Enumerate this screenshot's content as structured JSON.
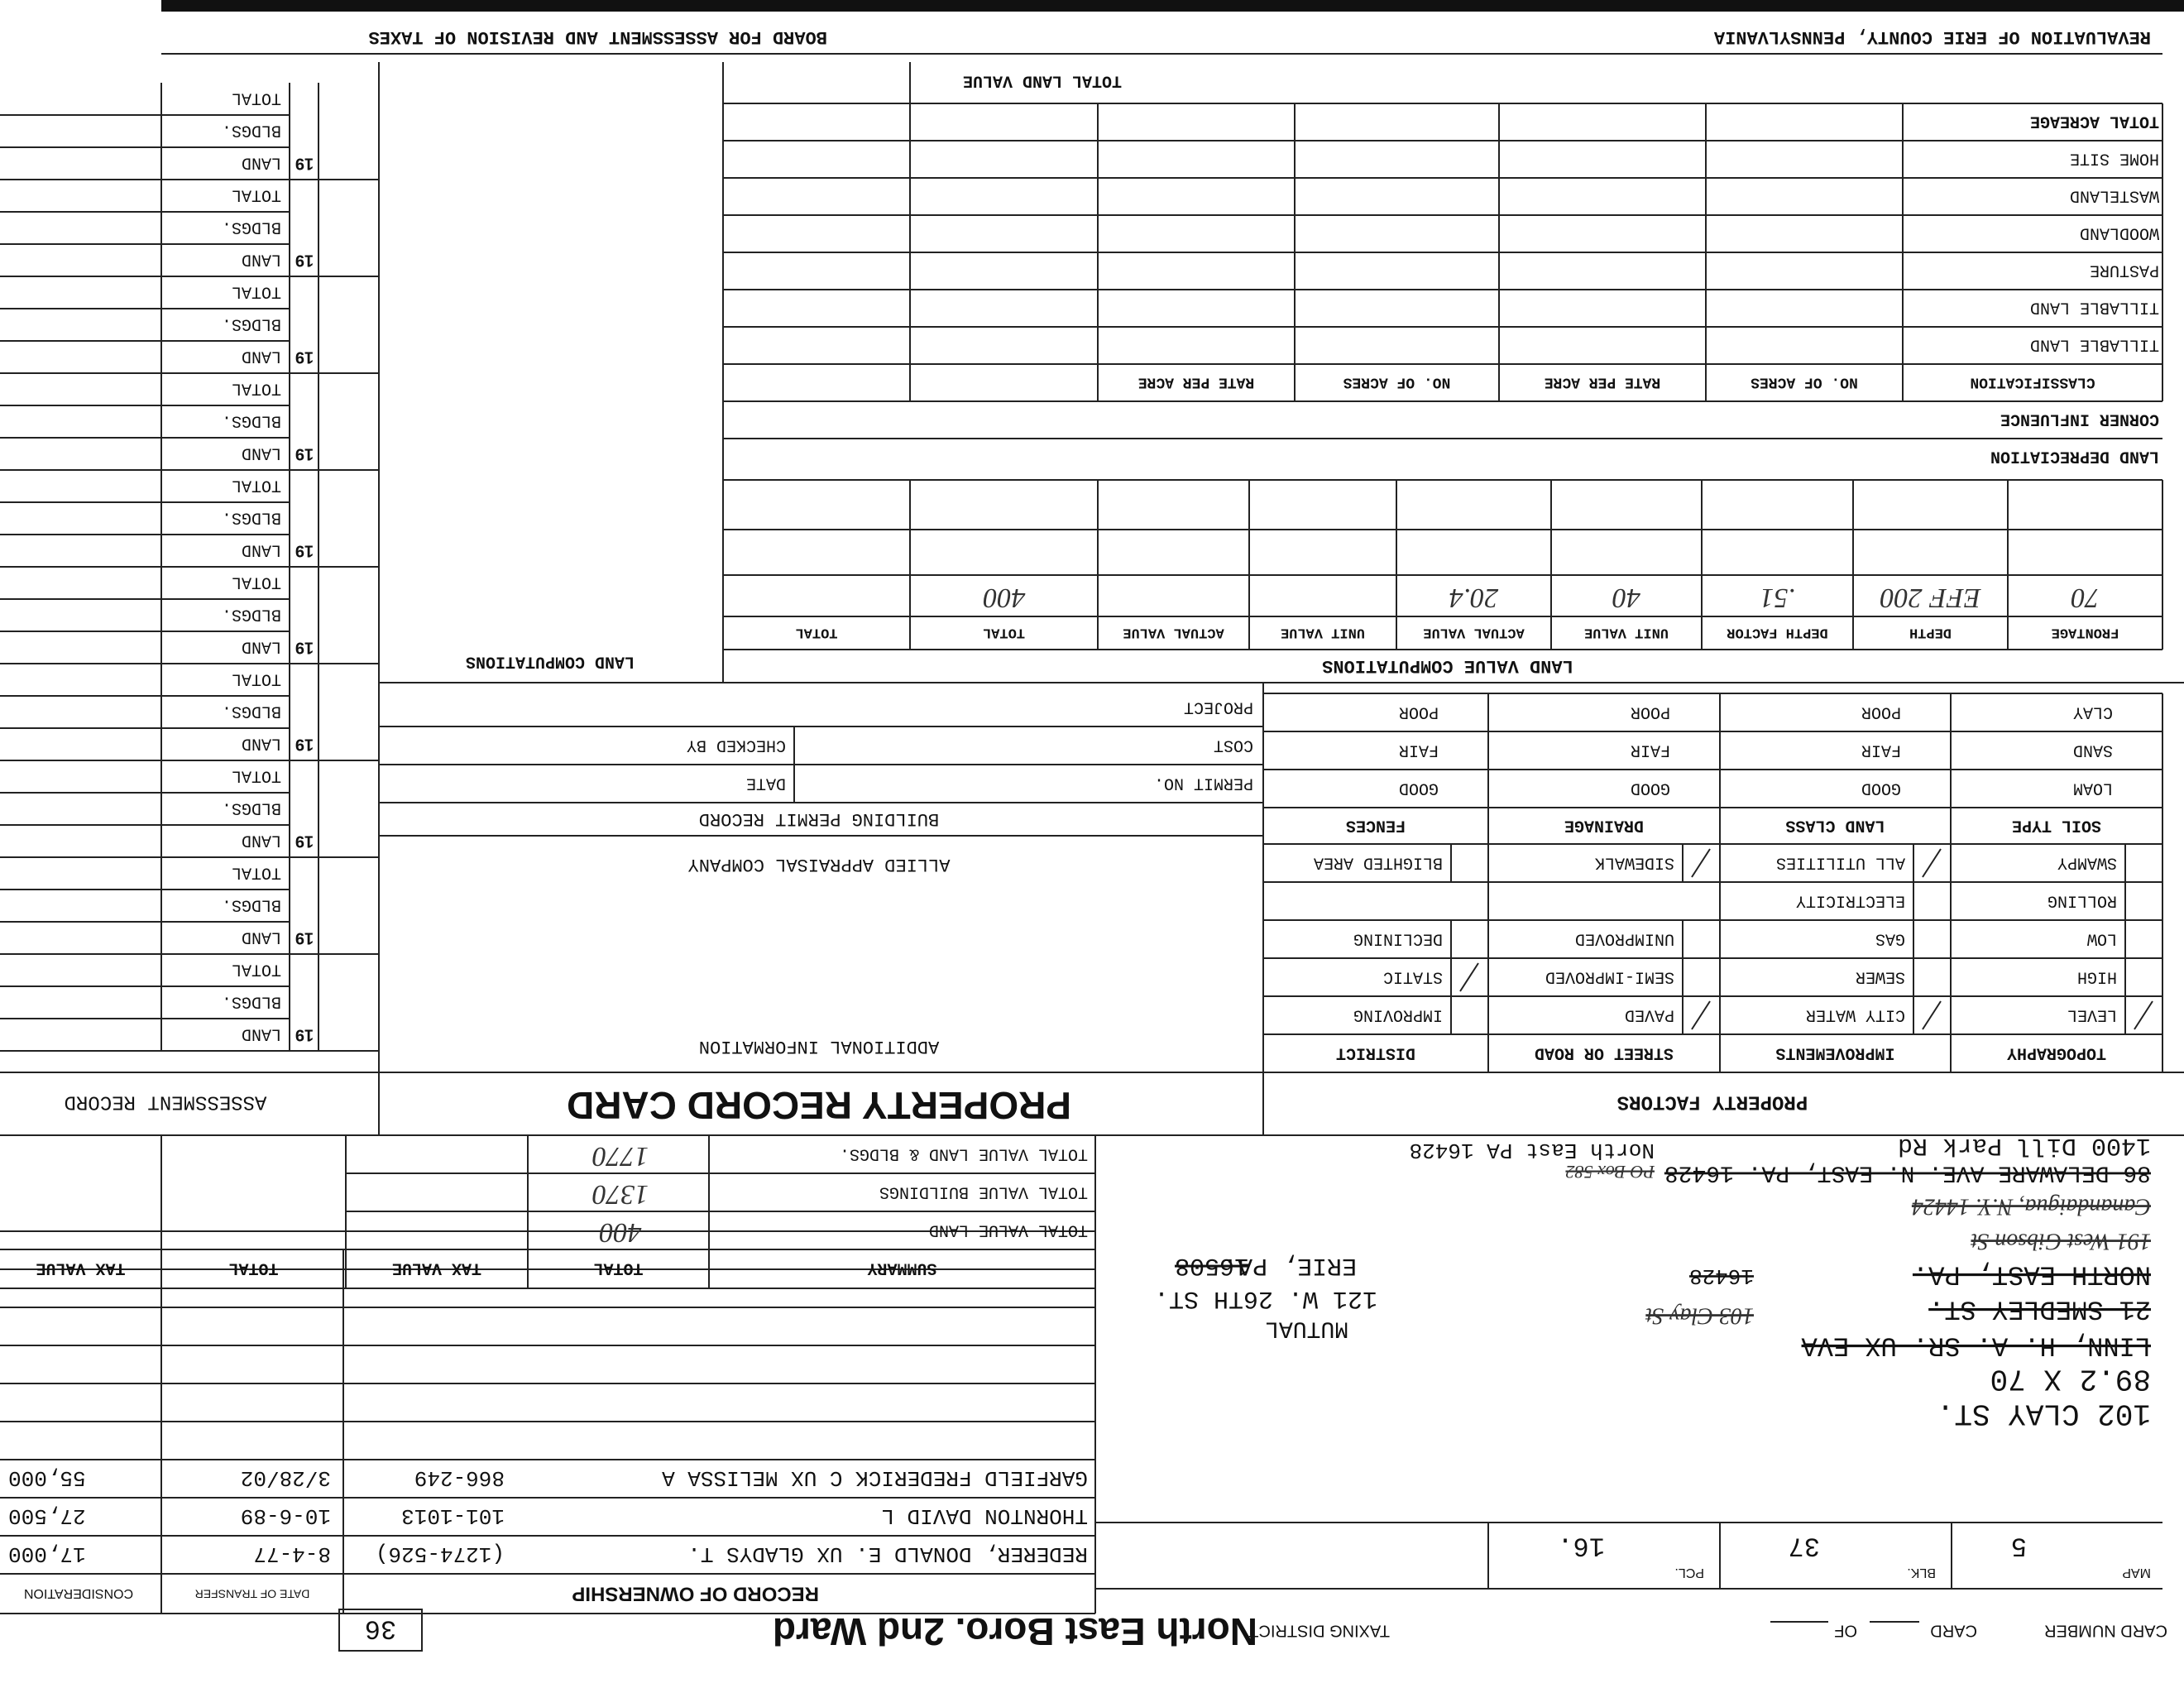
{
  "header": {
    "left": "REVALUATION OF ERIE COUNTY, PENNSYLVANIA",
    "right": "BOARD FOR ASSESSMENT AND REVISION OF TAXES"
  },
  "card": {
    "card_number_label": "CARD NUMBER",
    "card_label": "CARD",
    "of_label": "OF",
    "taxing_district_label": "TAXING DISTRICT",
    "taxing_district": "North East Boro. 2nd Ward",
    "box_number": "36"
  },
  "parcel": {
    "map_label": "MAP",
    "map": "5",
    "blk_label": "BLK.",
    "blk": "37",
    "pcl_label": "PCL.",
    "pcl": "16."
  },
  "address": {
    "lines": [
      {
        "text": "102 CLAY ST.",
        "struck": false
      },
      {
        "text": "89.2 X 70",
        "struck": false
      },
      {
        "text": "LINN, H. A. SR. UX EVA",
        "struck": true
      },
      {
        "text": "MUTUAL",
        "struck": false
      },
      {
        "text": "21 SMEDLEY ST.",
        "struck": true
      },
      {
        "text": "103 Clay St",
        "struck": true
      },
      {
        "text": "121 W. 26TH ST.",
        "struck": false
      },
      {
        "text": "NORTH EAST, PA.",
        "struck": true
      },
      {
        "text": "16428",
        "struck": true
      },
      {
        "text": "ERIE, PA.",
        "struck": false
      },
      {
        "text": "16508",
        "struck": true
      },
      {
        "text": "191 West Gibson St",
        "struck": true
      },
      {
        "text": "Canandaigua, N.Y. 14424",
        "struck": true
      },
      {
        "text": "86 DELAWARE AVE. N. EAST, PA. 16428",
        "struck": true
      },
      {
        "text": "1400 Dill Park Rd",
        "struck": false
      },
      {
        "text": "North East PA 16428",
        "struck": false
      },
      {
        "text": "PO Box 582",
        "struck": true
      }
    ]
  },
  "ownership": {
    "title": "RECORD OF OWNERSHIP",
    "date_label": "DATE OF TRANSFER",
    "consideration_label": "CONSIDERATION",
    "rows": [
      [
        "REDERER, DONALD E. UX GLADYS T.",
        "(1274-526)",
        "8-4-77",
        "17,000"
      ],
      [
        "THORNTON DAVID L",
        "101-1013",
        "10-6-89",
        "27,500"
      ],
      [
        "GARFIELD FREDERICK C UX MELISSA A",
        "866-249",
        "3/28/02",
        "55,000"
      ]
    ]
  },
  "summary": {
    "headers": [
      "SUMMARY",
      "TOTAL",
      "TAX VALUE",
      "TOTAL",
      "TAX VALUE"
    ],
    "rows": [
      "TOTAL VALUE LAND",
      "TOTAL VALUE BUILDINGS",
      "TOTAL VALUE LAND & BLDGS."
    ],
    "values": [
      "400",
      "1370",
      "1770"
    ]
  },
  "titles": {
    "property_factors": "PROPERTY FACTORS",
    "card_title": "PROPERTY RECORD CARD",
    "assessment_record": "ASSESSMENT RECORD"
  },
  "property_factors": {
    "headers": [
      "TOPOGRAPHY",
      "IMPROVEMENTS",
      "STREET OR ROAD",
      "DISTRICT"
    ],
    "rows": [
      [
        "LEVEL",
        "CITY WATER",
        "PAVED",
        "IMPROVING"
      ],
      [
        "HIGH",
        "SEWER",
        "SEMI-IMPROVED",
        "STATIC"
      ],
      [
        "LOW",
        "GAS",
        "UNIMPROVED",
        "DECLINING"
      ],
      [
        "ROLLING",
        "ELECTRICITY"
      ],
      [
        "SWAMPY",
        "ALL UTILITIES",
        "SIDEWALK",
        "BLIGHTED AREA"
      ]
    ]
  },
  "soil": {
    "headers": [
      "SOIL TYPE",
      "LAND CLASS",
      "DRAINAGE",
      "FENCES"
    ],
    "rows": [
      [
        "LOAM",
        "GOOD",
        "GOOD",
        "GOOD"
      ],
      [
        "SAND",
        "FAIR",
        "FAIR",
        "FAIR"
      ],
      [
        "CLAY",
        "POOR",
        "POOR",
        "POOR"
      ]
    ]
  },
  "additional": {
    "title": "ADDITIONAL INFORMATION",
    "company": "ALLIED APPRAISAL COMPANY"
  },
  "permit": {
    "title": "BUILDING PERMIT RECORD",
    "labels": [
      "PERMIT NO.",
      "DATE",
      "COST",
      "CHECKED BY",
      "PROJECT"
    ]
  },
  "land_value": {
    "title": "LAND VALUE COMPUTATIONS",
    "headers": [
      "FRONTAGE",
      "DEPTH",
      "DEPTH FACTOR",
      "UNIT VALUE",
      "ACTUAL VALUE",
      "UNIT VALUE",
      "ACTUAL VALUE",
      "TOTAL",
      "TOTAL"
    ],
    "entries": [
      "70",
      "EFF 200",
      ".51",
      "40",
      "20.4"
    ],
    "total": "400",
    "depreciation": "LAND DEPRECIATION",
    "corner": "CORNER INFLUENCE",
    "class_headers": [
      "CLASSIFICATION",
      "NO. OF ACRES",
      "RATE PER ACRE",
      "NO. OF ACRES",
      "RATE PER ACRE"
    ],
    "classes": [
      "TILLABLE LAND",
      "TILLABLE LAND",
      "PASTURE",
      "WOODLAND",
      "WASTELAND",
      "HOME SITE",
      "TOTAL ACREAGE"
    ],
    "total_land_value": "TOTAL LAND VALUE",
    "land_computations": "LAND COMPUTATIONS"
  },
  "assessment": {
    "blocks": [
      {
        "year": "19",
        "rows": [
          "LAND",
          "BLDGS.",
          "TOTAL"
        ]
      },
      {
        "year": "19",
        "rows": [
          "LAND",
          "BLDGS.",
          "TOTAL"
        ]
      },
      {
        "year": "19",
        "rows": [
          "LAND",
          "BLDGS.",
          "TOTAL"
        ]
      },
      {
        "year": "19",
        "rows": [
          "LAND",
          "BLDGS.",
          "TOTAL"
        ]
      },
      {
        "year": "19",
        "rows": [
          "LAND",
          "BLDGS.",
          "TOTAL"
        ]
      },
      {
        "year": "19",
        "rows": [
          "LAND",
          "BLDGS.",
          "TOTAL"
        ]
      },
      {
        "year": "19",
        "rows": [
          "LAND",
          "BLDGS.",
          "TOTAL"
        ]
      },
      {
        "year": "19",
        "rows": [
          "LAND",
          "BLDGS.",
          "TOTAL"
        ]
      },
      {
        "year": "19",
        "rows": [
          "LAND",
          "BLDGS.",
          "TOTAL"
        ]
      },
      {
        "year": "19",
        "rows": [
          "LAND",
          "BLDGS.",
          "TOTAL"
        ]
      }
    ]
  }
}
